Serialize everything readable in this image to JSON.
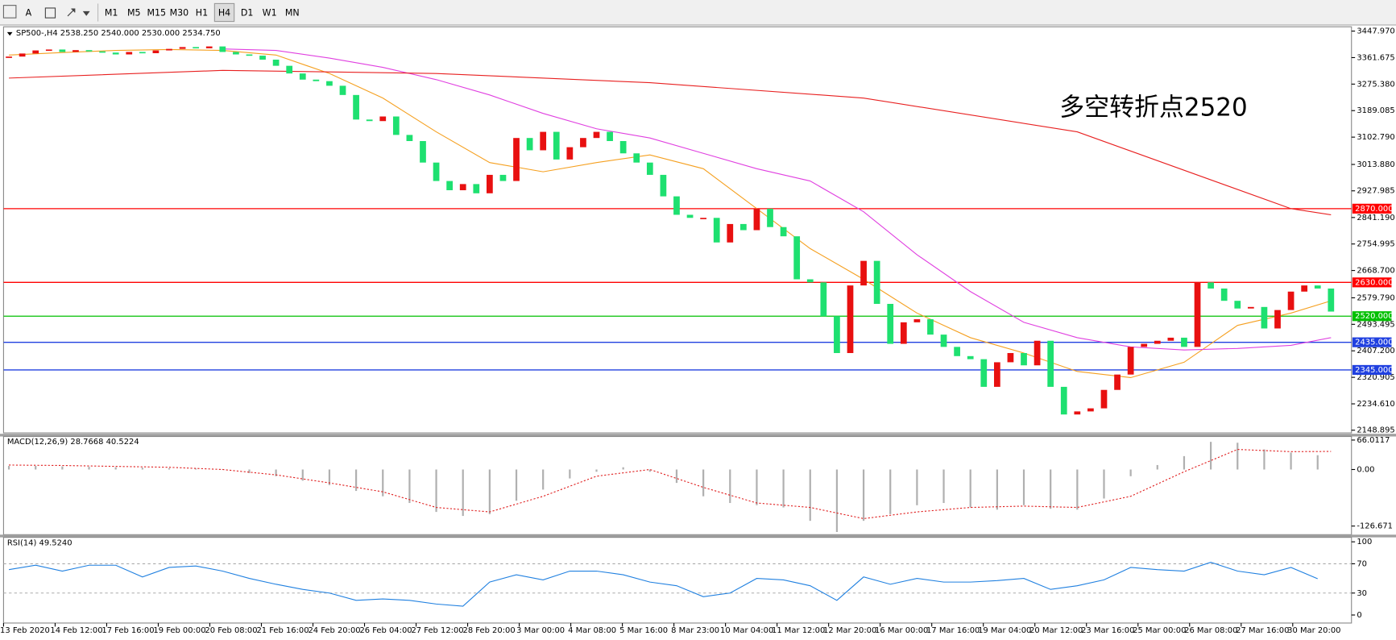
{
  "toolbar": {
    "text_button": "A",
    "timeframes": [
      "M1",
      "M5",
      "M15",
      "M30",
      "H1",
      "H4",
      "D1",
      "W1",
      "MN"
    ],
    "active": "H4"
  },
  "chart_data": [
    {
      "type": "candlestick",
      "title": "SP500-,H4 2538.250 2540.000 2530.000 2534.750",
      "annotation": "多空转折点2520",
      "up_color": "#e81010",
      "down_color": "#1ee070",
      "closes": [
        3365,
        3375,
        3385,
        3388,
        3380,
        3386,
        3382,
        3378,
        3372,
        3380,
        3376,
        3385,
        3390,
        3396,
        3392,
        3398,
        3380,
        3372,
        3368,
        3355,
        3335,
        3310,
        3290,
        3285,
        3270,
        3240,
        3160,
        3155,
        3170,
        3110,
        3090,
        3020,
        2960,
        2930,
        2950,
        2920,
        2980,
        2960,
        3100,
        3060,
        3120,
        3030,
        3070,
        3100,
        3120,
        3090,
        3050,
        3020,
        2980,
        2910,
        2850,
        2840,
        2840,
        2760,
        2820,
        2800,
        2870,
        2810,
        2780,
        2640,
        2630,
        2520,
        2400,
        2620,
        2700,
        2560,
        2430,
        2500,
        2510,
        2460,
        2420,
        2390,
        2380,
        2290,
        2370,
        2400,
        2360,
        2440,
        2290,
        2200,
        2210,
        2220,
        2280,
        2330,
        2420,
        2430,
        2440,
        2450,
        2420,
        2630,
        2610,
        2570,
        2545,
        2550,
        2480,
        2540,
        2600,
        2620,
        2610,
        2535
      ],
      "lines": [
        {
          "color": "#f5a020",
          "x": [
            0,
            4,
            8,
            12,
            16,
            20,
            24,
            28,
            32,
            36,
            40,
            44,
            48,
            52,
            56,
            60,
            64,
            68,
            72,
            76,
            80,
            84,
            88,
            92,
            96,
            99
          ],
          "values": [
            3370,
            3378,
            3385,
            3388,
            3385,
            3370,
            3310,
            3230,
            3120,
            3020,
            2990,
            3020,
            3045,
            3000,
            2870,
            2740,
            2640,
            2530,
            2450,
            2400,
            2340,
            2320,
            2370,
            2490,
            2530,
            2570
          ]
        },
        {
          "color": "#e040e0",
          "x": [
            16,
            20,
            24,
            28,
            32,
            36,
            40,
            44,
            48,
            52,
            56,
            60,
            64,
            68,
            72,
            76,
            80,
            84,
            88,
            92,
            96,
            99
          ],
          "values": [
            3390,
            3385,
            3360,
            3330,
            3290,
            3240,
            3180,
            3130,
            3100,
            3050,
            3000,
            2960,
            2860,
            2720,
            2600,
            2500,
            2450,
            2420,
            2410,
            2415,
            2425,
            2450
          ]
        },
        {
          "color": "#e82020",
          "x": [
            0,
            16,
            32,
            48,
            64,
            80,
            96,
            99
          ],
          "values": [
            3295,
            3320,
            3310,
            3280,
            3230,
            3120,
            2870,
            2850
          ]
        }
      ],
      "levels": [
        {
          "value": 2870,
          "label": "2870.000",
          "color": "#ff0000"
        },
        {
          "value": 2630,
          "label": "2630.000",
          "color": "#ff0000"
        },
        {
          "value": 2520,
          "label": "2520.000",
          "color": "#00c000"
        },
        {
          "value": 2435,
          "label": "2435.000",
          "color": "#2040e0"
        },
        {
          "value": 2345,
          "label": "2345.000",
          "color": "#2040e0"
        }
      ],
      "ylim": [
        2140,
        3462
      ],
      "yticks": [
        {
          "value": 3447.97,
          "label": "3447.970"
        },
        {
          "value": 3361.675,
          "label": "3361.675"
        },
        {
          "value": 3275.38,
          "label": "3275.380"
        },
        {
          "value": 3189.085,
          "label": "3189.085"
        },
        {
          "value": 3102.79,
          "label": "3102.790"
        },
        {
          "value": 3013.88,
          "label": "3013.880"
        },
        {
          "value": 2927.985,
          "label": "2927.985"
        },
        {
          "value": 2841.19,
          "label": "2841.190"
        },
        {
          "value": 2754.995,
          "label": "2754.995"
        },
        {
          "value": 2668.7,
          "label": "2668.700"
        },
        {
          "value": 2579.79,
          "label": "2579.790"
        },
        {
          "value": 2493.495,
          "label": "2493.495"
        },
        {
          "value": 2407.2,
          "label": "2407.200"
        },
        {
          "value": 2320.905,
          "label": "2320.905"
        },
        {
          "value": 2234.61,
          "label": "2234.610"
        },
        {
          "value": 2148.895,
          "label": "2148.895"
        }
      ],
      "x_labels": [
        "13 Feb 2020",
        "14 Feb 12:00",
        "17 Feb 16:00",
        "19 Feb 00:00",
        "20 Feb 08:00",
        "21 Feb 16:00",
        "24 Feb 20:00",
        "26 Feb 04:00",
        "27 Feb 12:00",
        "28 Feb 20:00",
        "3 Mar 00:00",
        "4 Mar 08:00",
        "5 Mar 16:00",
        "8 Mar 23:00",
        "10 Mar 04:00",
        "11 Mar 12:00",
        "12 Mar 20:00",
        "16 Mar 00:00",
        "17 Mar 16:00",
        "19 Mar 04:00",
        "20 Mar 12:00",
        "23 Mar 16:00",
        "25 Mar 00:00",
        "26 Mar 08:00",
        "27 Mar 16:00",
        "30 Mar 20:00"
      ]
    },
    {
      "type": "macd",
      "title": "MACD(12,26,9) 28.7668 40.5224",
      "color": "#b0b0b0",
      "x": [
        0,
        2,
        4,
        6,
        8,
        10,
        12,
        14,
        16,
        18,
        20,
        22,
        24,
        26,
        28,
        30,
        32,
        34,
        36,
        38,
        40,
        42,
        44,
        46,
        48,
        50,
        52,
        54,
        56,
        58,
        60,
        62,
        64,
        66,
        68,
        70,
        72,
        74,
        76,
        78,
        80,
        82,
        84,
        86,
        88,
        90,
        92,
        94,
        96,
        98
      ],
      "values": [
        8,
        8,
        7,
        6,
        5,
        4,
        3,
        2,
        0,
        -8,
        -15,
        -25,
        -35,
        -48,
        -60,
        -75,
        -95,
        -104,
        -100,
        -70,
        -45,
        -20,
        -5,
        5,
        -5,
        -30,
        -60,
        -75,
        -80,
        -85,
        -115,
        -140,
        -115,
        -100,
        -80,
        -75,
        -85,
        -90,
        -80,
        -88,
        -90,
        -65,
        -15,
        10,
        30,
        62,
        60,
        45,
        38,
        32
      ],
      "signal": {
        "color": "#e02020",
        "x": [
          0,
          4,
          8,
          12,
          16,
          20,
          24,
          28,
          32,
          36,
          40,
          44,
          48,
          52,
          56,
          60,
          64,
          68,
          72,
          76,
          80,
          84,
          88,
          92,
          96,
          99
        ],
        "values": [
          10,
          9,
          7,
          5,
          0,
          -12,
          -30,
          -50,
          -85,
          -95,
          -60,
          -15,
          0,
          -40,
          -75,
          -85,
          -110,
          -95,
          -85,
          -82,
          -85,
          -60,
          -5,
          45,
          40,
          40.52
        ]
      },
      "ylim": [
        -144,
        74
      ],
      "yticks": [
        {
          "value": 66.0117,
          "label": "66.0117"
        },
        {
          "value": 0,
          "label": "0.00"
        },
        {
          "value": -126.671,
          "label": "-126.671"
        }
      ]
    },
    {
      "type": "line",
      "title": "RSI(14) 49.5240",
      "color": "#2080e0",
      "x": [
        0,
        2,
        4,
        6,
        8,
        10,
        12,
        14,
        16,
        18,
        20,
        22,
        24,
        26,
        28,
        30,
        32,
        34,
        36,
        38,
        40,
        42,
        44,
        46,
        48,
        50,
        52,
        54,
        56,
        58,
        60,
        62,
        64,
        66,
        68,
        70,
        72,
        74,
        76,
        78,
        80,
        82,
        84,
        86,
        88,
        90,
        92,
        94,
        96,
        98
      ],
      "values": [
        62,
        68,
        60,
        68,
        68,
        52,
        65,
        67,
        60,
        50,
        42,
        35,
        30,
        20,
        22,
        20,
        15,
        12,
        45,
        55,
        48,
        60,
        60,
        55,
        45,
        40,
        25,
        30,
        50,
        48,
        40,
        20,
        52,
        42,
        50,
        45,
        45,
        47,
        50,
        35,
        40,
        48,
        65,
        62,
        60,
        72,
        60,
        55,
        65,
        49.524
      ],
      "ylim": [
        0,
        100
      ],
      "yticks": [
        100,
        70,
        30,
        0
      ],
      "levels": [
        70,
        30
      ]
    }
  ]
}
